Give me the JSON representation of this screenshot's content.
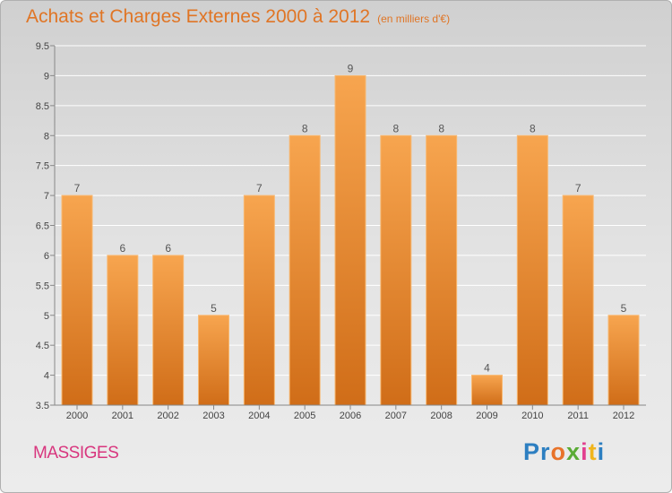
{
  "chart_data": {
    "type": "bar",
    "title": "Achats et Charges Externes 2000 à 2012",
    "subtitle": "(en milliers d'€)",
    "categories": [
      "2000",
      "2001",
      "2002",
      "2003",
      "2004",
      "2005",
      "2006",
      "2007",
      "2008",
      "2009",
      "2010",
      "2011",
      "2012"
    ],
    "values": [
      7,
      6,
      6,
      5,
      7,
      8,
      9,
      8,
      8,
      4,
      8,
      7,
      5
    ],
    "data_labels": [
      "7",
      "6",
      "6",
      "5",
      "7",
      "8",
      "9",
      "8",
      "8",
      "4",
      "8",
      "7",
      "5"
    ],
    "ylim": [
      3.5,
      9.5
    ],
    "yticks": [
      "3.5",
      "4",
      "4.5",
      "5",
      "5.5",
      "6",
      "6.5",
      "7",
      "7.5",
      "8",
      "8.5",
      "9",
      "9.5"
    ],
    "grid": true,
    "bar_color_top": "#f7a54f",
    "bar_color_bottom": "#d06d18"
  },
  "footer": {
    "commune": "MASSIGES",
    "logo": "Proxiti",
    "logo_letters": [
      "P",
      "r",
      "o",
      "x",
      "i",
      "t",
      "i"
    ],
    "logo_colors": [
      "#2d7fc1",
      "#2d7fc1",
      "#e8732a",
      "#5aab35",
      "#e23f8f",
      "#f0b51d",
      "#2d7fc1"
    ]
  }
}
